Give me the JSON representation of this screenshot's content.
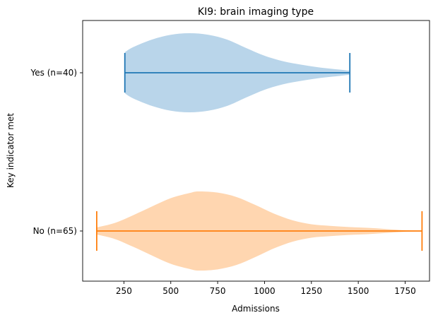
{
  "chart_data": {
    "type": "violin",
    "orientation": "horizontal",
    "title": "KI9: brain imaging type",
    "xlabel": "Admissions",
    "ylabel": "Key indicator met",
    "xlim": [
      30,
      1880
    ],
    "xticks": [
      250,
      500,
      750,
      1000,
      1250,
      1500,
      1750
    ],
    "grid": false,
    "series": [
      {
        "name": "Yes (n=40)",
        "min": 255,
        "max": 1455,
        "fill_color": "#b9d5ea",
        "line_color": "#1f77b4",
        "density": [
          [
            255,
            0.52
          ],
          [
            300,
            0.65
          ],
          [
            400,
            0.84
          ],
          [
            500,
            0.96
          ],
          [
            600,
            1.0
          ],
          [
            700,
            0.96
          ],
          [
            800,
            0.84
          ],
          [
            900,
            0.63
          ],
          [
            1000,
            0.43
          ],
          [
            1100,
            0.29
          ],
          [
            1200,
            0.2
          ],
          [
            1300,
            0.13
          ],
          [
            1400,
            0.08
          ],
          [
            1455,
            0.05
          ]
        ]
      },
      {
        "name": "No (n=65)",
        "min": 105,
        "max": 1840,
        "fill_color": "#ffd6b0",
        "line_color": "#ff7f0e",
        "density": [
          [
            105,
            0.09
          ],
          [
            200,
            0.2
          ],
          [
            300,
            0.4
          ],
          [
            400,
            0.62
          ],
          [
            500,
            0.83
          ],
          [
            600,
            0.96
          ],
          [
            650,
            1.0
          ],
          [
            750,
            0.97
          ],
          [
            850,
            0.86
          ],
          [
            950,
            0.66
          ],
          [
            1050,
            0.44
          ],
          [
            1150,
            0.27
          ],
          [
            1250,
            0.17
          ],
          [
            1350,
            0.13
          ],
          [
            1450,
            0.1
          ],
          [
            1550,
            0.08
          ],
          [
            1650,
            0.05
          ],
          [
            1750,
            0.02
          ],
          [
            1840,
            0.01
          ]
        ]
      }
    ]
  }
}
